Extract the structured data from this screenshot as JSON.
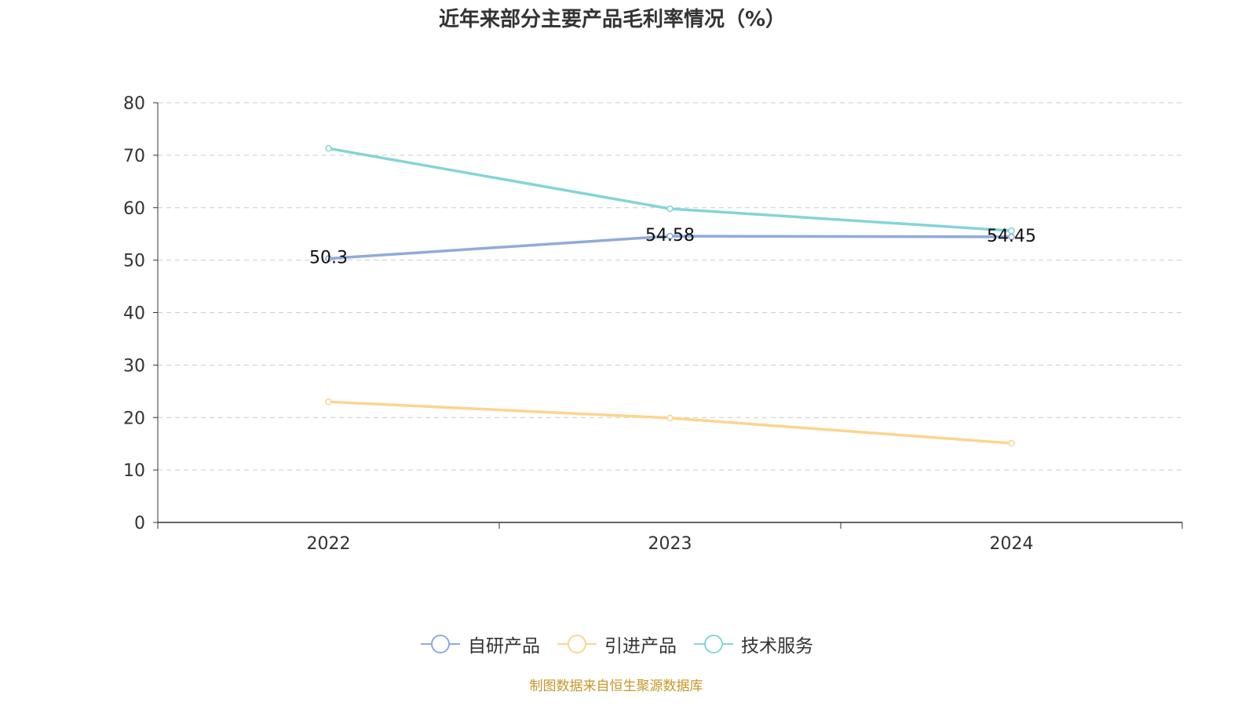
{
  "chart_data": {
    "type": "line",
    "title": "近年来部分主要产品毛利率情况（%）",
    "categories": [
      "2022",
      "2023",
      "2024"
    ],
    "ylim": [
      0,
      80
    ],
    "yticks": [
      "0",
      "10",
      "20",
      "30",
      "40",
      "50",
      "60",
      "70",
      "80"
    ],
    "grid": true,
    "legend_position": "bottom",
    "series": [
      {
        "name": "自研产品",
        "color": "#8fabdb",
        "values": [
          50.3,
          54.58,
          54.45
        ],
        "labels": [
          "50.3",
          "54.58",
          "54.45"
        ]
      },
      {
        "name": "引进产品",
        "color": "#fdd48e",
        "values": [
          23.0,
          19.9,
          15.1
        ],
        "labels": []
      },
      {
        "name": "技术服务",
        "color": "#84d5d6",
        "values": [
          71.3,
          59.8,
          55.6
        ],
        "labels": []
      }
    ]
  },
  "source": "制图数据来自恒生聚源数据库"
}
